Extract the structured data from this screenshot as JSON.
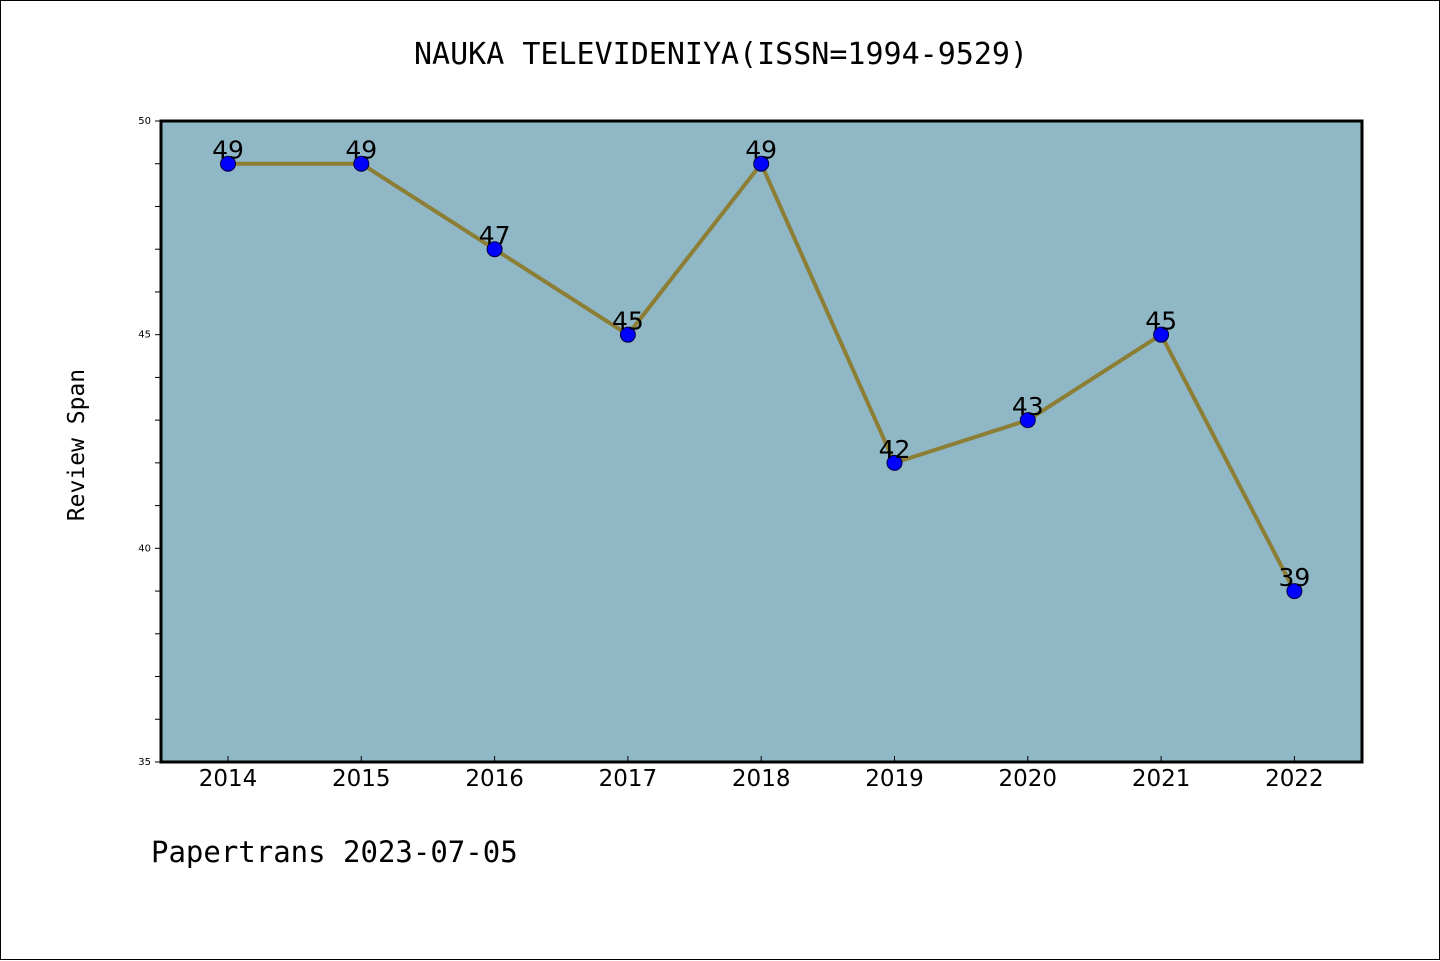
{
  "chart_data": {
    "type": "line",
    "title": "NAUKA TELEVIDENIYA(ISSN=1994-9529)",
    "xlabel": "",
    "ylabel": "Review Span",
    "categories": [
      "2014",
      "2015",
      "2016",
      "2017",
      "2018",
      "2019",
      "2020",
      "2021",
      "2022"
    ],
    "values": [
      49,
      49,
      47,
      45,
      49,
      42,
      43,
      45,
      39
    ],
    "ylim": [
      35,
      50
    ],
    "yticks": [
      35,
      40,
      45,
      50
    ],
    "data_labels": [
      "49",
      "49",
      "47",
      "45",
      "49",
      "42",
      "43",
      "45",
      "39"
    ],
    "grid": false,
    "legend": "none"
  },
  "footer": "Papertrans 2023-07-05",
  "colors": {
    "plot_background": "#8fb7c6",
    "line": "#8c7e35",
    "marker": "#0000ff",
    "text": "#000000"
  }
}
